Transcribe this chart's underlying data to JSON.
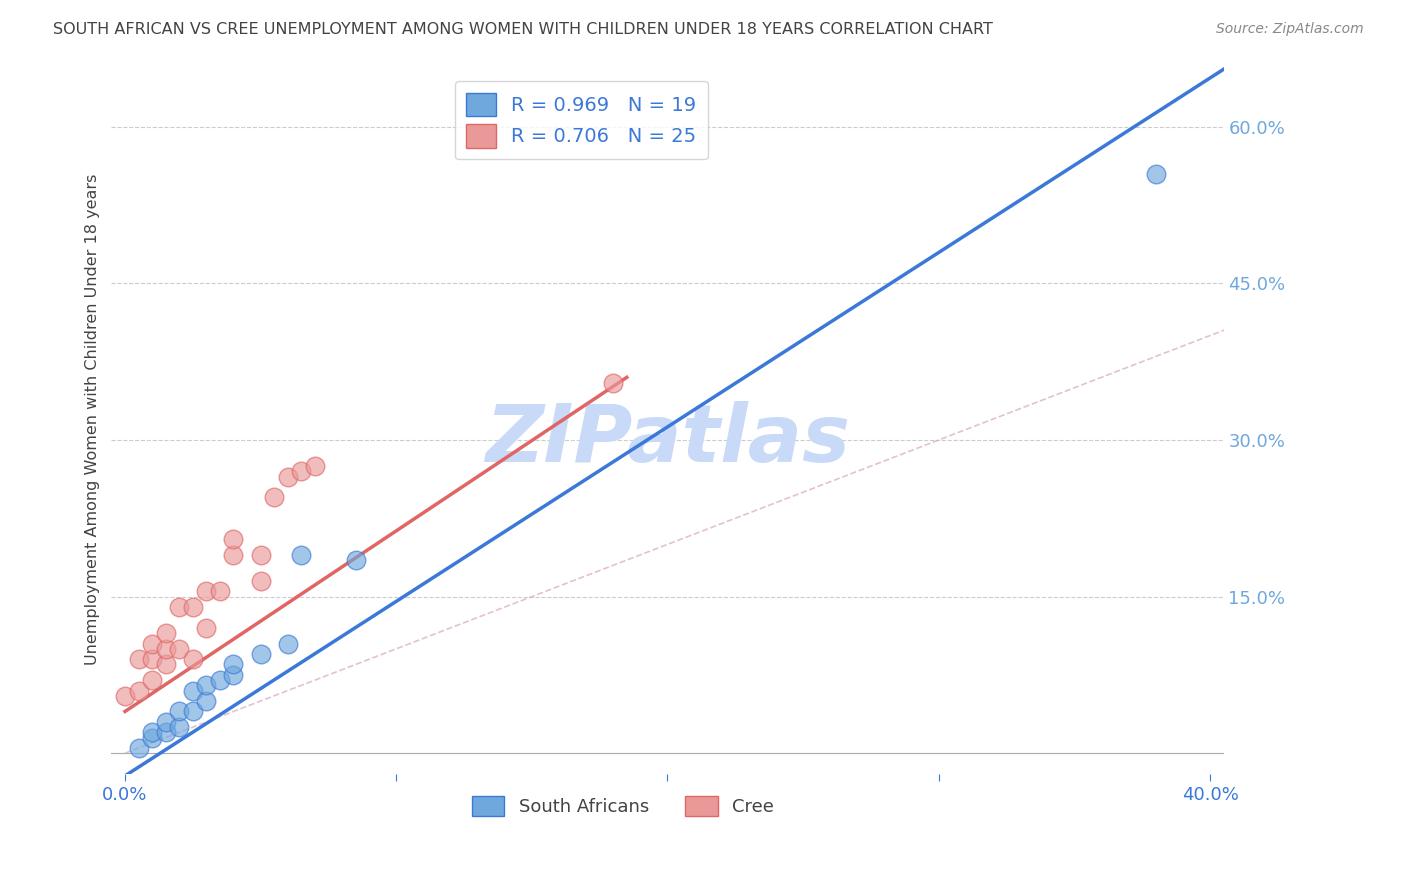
{
  "title": "SOUTH AFRICAN VS CREE UNEMPLOYMENT AMONG WOMEN WITH CHILDREN UNDER 18 YEARS CORRELATION CHART",
  "source": "Source: ZipAtlas.com",
  "ylabel": "Unemployment Among Women with Children Under 18 years",
  "xlim": [
    -0.005,
    0.405
  ],
  "ylim": [
    -0.02,
    0.66
  ],
  "xticks": [
    0.0,
    0.1,
    0.2,
    0.3,
    0.4
  ],
  "xtick_labels": [
    "0.0%",
    "",
    "",
    "",
    "40.0%"
  ],
  "yticks_right": [
    0.0,
    0.15,
    0.3,
    0.45,
    0.6
  ],
  "ytick_labels_right": [
    "",
    "15.0%",
    "30.0%",
    "45.0%",
    "60.0%"
  ],
  "blue_R": 0.969,
  "blue_N": 19,
  "pink_R": 0.706,
  "pink_N": 25,
  "blue_scatter_x": [
    0.005,
    0.01,
    0.01,
    0.015,
    0.015,
    0.02,
    0.02,
    0.025,
    0.025,
    0.03,
    0.03,
    0.035,
    0.04,
    0.04,
    0.05,
    0.06,
    0.065,
    0.085,
    0.38
  ],
  "blue_scatter_y": [
    0.005,
    0.015,
    0.02,
    0.02,
    0.03,
    0.025,
    0.04,
    0.04,
    0.06,
    0.05,
    0.065,
    0.07,
    0.075,
    0.085,
    0.095,
    0.105,
    0.19,
    0.185,
    0.555
  ],
  "pink_scatter_x": [
    0.0,
    0.005,
    0.005,
    0.01,
    0.01,
    0.01,
    0.015,
    0.015,
    0.015,
    0.02,
    0.02,
    0.025,
    0.025,
    0.03,
    0.03,
    0.035,
    0.04,
    0.04,
    0.05,
    0.05,
    0.055,
    0.06,
    0.065,
    0.07,
    0.18
  ],
  "pink_scatter_y": [
    0.055,
    0.06,
    0.09,
    0.07,
    0.09,
    0.105,
    0.085,
    0.1,
    0.115,
    0.1,
    0.14,
    0.09,
    0.14,
    0.12,
    0.155,
    0.155,
    0.19,
    0.205,
    0.165,
    0.19,
    0.245,
    0.265,
    0.27,
    0.275,
    0.355
  ],
  "blue_line_color": "#3c78d8",
  "pink_line_color": "#e06666",
  "ref_line_color": "#d9a8b8",
  "blue_color": "#6fa8dc",
  "pink_color": "#ea9999",
  "watermark_color": "#c9daf8",
  "legend_text_color": "#3c78d8",
  "title_color": "#434343",
  "axis_color": "#cccccc",
  "right_tick_color": "#6fa8dc",
  "background_color": "#ffffff"
}
